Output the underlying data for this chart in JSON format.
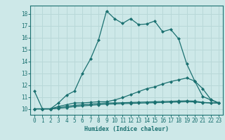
{
  "xlabel": "Humidex (Indice chaleur)",
  "bg_color": "#cde8e8",
  "line_color": "#1a7070",
  "grid_color": "#b8d8d8",
  "xlim": [
    -0.5,
    23.5
  ],
  "ylim": [
    9.5,
    18.7
  ],
  "yticks": [
    10,
    11,
    12,
    13,
    14,
    15,
    16,
    17,
    18
  ],
  "xticks": [
    0,
    1,
    2,
    3,
    4,
    5,
    6,
    7,
    8,
    9,
    10,
    11,
    12,
    13,
    14,
    15,
    16,
    17,
    18,
    19,
    20,
    21,
    22,
    23
  ],
  "series": [
    {
      "x": [
        0,
        1,
        2,
        3,
        4,
        5,
        6,
        7,
        8,
        9,
        10,
        11,
        12,
        13,
        14,
        15,
        16,
        17,
        18,
        19,
        20,
        21,
        22,
        23
      ],
      "y": [
        11.5,
        10.0,
        10.0,
        10.5,
        11.15,
        11.5,
        13.0,
        14.2,
        15.8,
        18.25,
        17.6,
        17.2,
        17.6,
        17.1,
        17.15,
        17.4,
        16.5,
        16.7,
        15.9,
        13.8,
        12.35,
        11.7,
        10.8,
        10.5
      ]
    },
    {
      "x": [
        0,
        1,
        2,
        3,
        4,
        5,
        6,
        7,
        8,
        9,
        10,
        11,
        12,
        13,
        14,
        15,
        16,
        17,
        18,
        19,
        20,
        21,
        22,
        23
      ],
      "y": [
        10.0,
        10.0,
        10.0,
        10.2,
        10.35,
        10.5,
        10.5,
        10.55,
        10.6,
        10.6,
        10.75,
        10.95,
        11.2,
        11.45,
        11.7,
        11.85,
        12.1,
        12.3,
        12.45,
        12.6,
        12.35,
        11.05,
        10.75,
        10.5
      ]
    },
    {
      "x": [
        0,
        1,
        2,
        3,
        4,
        5,
        6,
        7,
        8,
        9,
        10,
        11,
        12,
        13,
        14,
        15,
        16,
        17,
        18,
        19,
        20,
        21,
        22,
        23
      ],
      "y": [
        10.0,
        10.0,
        10.0,
        10.1,
        10.2,
        10.3,
        10.35,
        10.4,
        10.45,
        10.5,
        10.5,
        10.52,
        10.54,
        10.56,
        10.58,
        10.6,
        10.62,
        10.64,
        10.66,
        10.68,
        10.65,
        10.55,
        10.5,
        10.5
      ]
    },
    {
      "x": [
        0,
        1,
        2,
        3,
        4,
        5,
        6,
        7,
        8,
        9,
        10,
        11,
        12,
        13,
        14,
        15,
        16,
        17,
        18,
        19,
        20,
        21,
        22,
        23
      ],
      "y": [
        10.0,
        10.0,
        10.0,
        10.05,
        10.1,
        10.2,
        10.25,
        10.3,
        10.35,
        10.4,
        10.42,
        10.44,
        10.46,
        10.48,
        10.5,
        10.52,
        10.54,
        10.56,
        10.58,
        10.6,
        10.58,
        10.52,
        10.5,
        10.5
      ]
    }
  ]
}
